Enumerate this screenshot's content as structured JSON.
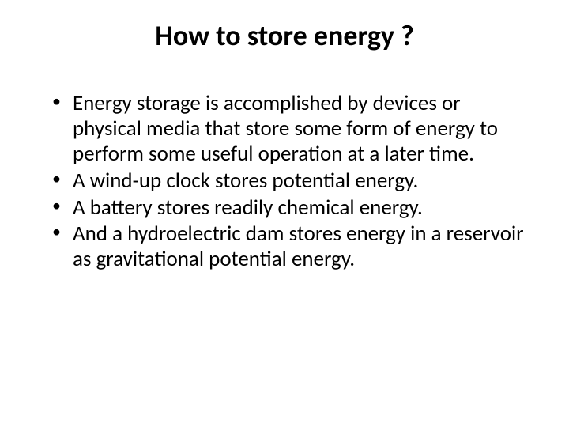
{
  "slide": {
    "title": "How to store energy ?",
    "bullets": [
      "Energy storage is accomplished by devices or physical media that store some form of energy to perform some useful operation at a later time.",
      "A wind-up clock stores potential energy.",
      "A battery stores readily chemical energy.",
      "And a hydroelectric dam stores energy in a reservoir as gravitational potential energy."
    ],
    "colors": {
      "background": "#ffffff",
      "text": "#000000"
    },
    "typography": {
      "title_fontsize": 36,
      "title_weight": 700,
      "body_fontsize": 27,
      "font_family": "Calibri"
    }
  }
}
